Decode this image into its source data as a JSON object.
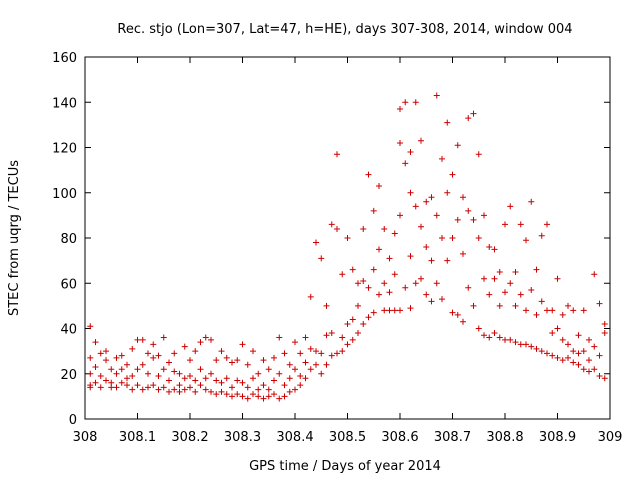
{
  "chart_data": {
    "type": "scatter",
    "title": "Rec. stjo (Lon=307, Lat=47, h=HE), days 307-308, 2014, window 004",
    "xlabel": "GPS time / Days of year 2014",
    "ylabel": "STEC from uqrg / TECUs",
    "xlim": [
      308,
      309
    ],
    "ylim": [
      0,
      160
    ],
    "xticks": [
      "308",
      "308.1",
      "308.2",
      "308.3",
      "308.4",
      "308.5",
      "308.6",
      "308.7",
      "308.8",
      "308.9",
      "309"
    ],
    "yticks": [
      "0",
      "20",
      "40",
      "60",
      "80",
      "100",
      "120",
      "140",
      "160"
    ],
    "grid": false,
    "marker": "plus",
    "color": "#cc0000",
    "series": [
      {
        "points": [
          [
            308.01,
            41
          ],
          [
            308.01,
            27
          ],
          [
            308.01,
            20
          ],
          [
            308.01,
            15
          ],
          [
            308.01,
            14
          ],
          [
            308.02,
            34
          ],
          [
            308.02,
            23
          ],
          [
            308.02,
            16
          ],
          [
            308.03,
            29
          ],
          [
            308.03,
            19
          ],
          [
            308.03,
            14
          ],
          [
            308.04,
            30
          ],
          [
            308.04,
            26
          ],
          [
            308.04,
            17
          ],
          [
            308.05,
            22
          ],
          [
            308.05,
            16
          ],
          [
            308.05,
            14
          ],
          [
            308.06,
            27
          ],
          [
            308.06,
            20
          ],
          [
            308.06,
            14
          ],
          [
            308.07,
            28
          ],
          [
            308.07,
            22
          ],
          [
            308.07,
            16
          ],
          [
            308.08,
            24
          ],
          [
            308.08,
            18
          ],
          [
            308.08,
            15
          ],
          [
            308.09,
            31
          ],
          [
            308.09,
            19
          ],
          [
            308.09,
            13
          ],
          [
            308.1,
            35
          ],
          [
            308.1,
            22
          ],
          [
            308.1,
            15
          ],
          [
            308.11,
            35
          ],
          [
            308.11,
            24
          ],
          [
            308.11,
            13
          ],
          [
            308.12,
            29
          ],
          [
            308.12,
            20
          ],
          [
            308.12,
            14
          ],
          [
            308.13,
            33
          ],
          [
            308.13,
            27
          ],
          [
            308.13,
            15
          ],
          [
            308.14,
            28
          ],
          [
            308.14,
            19
          ],
          [
            308.14,
            13
          ],
          [
            308.15,
            36
          ],
          [
            308.15,
            22
          ],
          [
            308.15,
            14
          ],
          [
            308.16,
            25
          ],
          [
            308.16,
            17
          ],
          [
            308.16,
            12
          ],
          [
            308.17,
            29
          ],
          [
            308.17,
            21
          ],
          [
            308.17,
            13
          ],
          [
            308.18,
            20
          ],
          [
            308.18,
            15
          ],
          [
            308.18,
            12
          ],
          [
            308.19,
            32
          ],
          [
            308.19,
            18
          ],
          [
            308.19,
            13
          ],
          [
            308.2,
            26
          ],
          [
            308.2,
            19
          ],
          [
            308.2,
            14
          ],
          [
            308.21,
            30
          ],
          [
            308.21,
            17
          ],
          [
            308.21,
            12
          ],
          [
            308.22,
            34
          ],
          [
            308.22,
            22
          ],
          [
            308.22,
            15
          ],
          [
            308.23,
            36
          ],
          [
            308.23,
            18
          ],
          [
            308.23,
            13
          ],
          [
            308.24,
            35
          ],
          [
            308.24,
            20
          ],
          [
            308.24,
            12
          ],
          [
            308.25,
            26
          ],
          [
            308.25,
            17
          ],
          [
            308.25,
            11
          ],
          [
            308.26,
            30
          ],
          [
            308.26,
            16
          ],
          [
            308.26,
            12
          ],
          [
            308.27,
            27
          ],
          [
            308.27,
            18
          ],
          [
            308.27,
            11
          ],
          [
            308.28,
            25
          ],
          [
            308.28,
            14
          ],
          [
            308.28,
            10
          ],
          [
            308.29,
            26
          ],
          [
            308.29,
            17
          ],
          [
            308.29,
            11
          ],
          [
            308.3,
            33
          ],
          [
            308.3,
            16
          ],
          [
            308.3,
            10
          ],
          [
            308.31,
            24
          ],
          [
            308.31,
            14
          ],
          [
            308.31,
            9
          ],
          [
            308.32,
            30
          ],
          [
            308.32,
            18
          ],
          [
            308.32,
            11
          ],
          [
            308.33,
            20
          ],
          [
            308.33,
            13
          ],
          [
            308.33,
            10
          ],
          [
            308.34,
            26
          ],
          [
            308.34,
            15
          ],
          [
            308.34,
            9
          ],
          [
            308.35,
            22
          ],
          [
            308.35,
            13
          ],
          [
            308.35,
            10
          ],
          [
            308.36,
            27
          ],
          [
            308.36,
            17
          ],
          [
            308.36,
            11
          ],
          [
            308.37,
            36
          ],
          [
            308.37,
            20
          ],
          [
            308.37,
            9
          ],
          [
            308.38,
            29
          ],
          [
            308.38,
            15
          ],
          [
            308.38,
            10
          ],
          [
            308.39,
            24
          ],
          [
            308.39,
            18
          ],
          [
            308.39,
            12
          ],
          [
            308.4,
            34
          ],
          [
            308.4,
            22
          ],
          [
            308.4,
            13
          ],
          [
            308.41,
            29
          ],
          [
            308.41,
            19
          ],
          [
            308.41,
            15
          ],
          [
            308.42,
            36
          ],
          [
            308.42,
            25
          ],
          [
            308.42,
            18
          ],
          [
            308.43,
            54
          ],
          [
            308.43,
            31
          ],
          [
            308.43,
            22
          ],
          [
            308.44,
            78
          ],
          [
            308.44,
            30
          ],
          [
            308.44,
            24
          ],
          [
            308.45,
            71
          ],
          [
            308.45,
            29
          ],
          [
            308.45,
            20
          ],
          [
            308.46,
            50
          ],
          [
            308.46,
            37
          ],
          [
            308.46,
            24
          ],
          [
            308.47,
            86
          ],
          [
            308.47,
            38
          ],
          [
            308.47,
            28
          ],
          [
            308.48,
            117
          ],
          [
            308.48,
            84
          ],
          [
            308.48,
            29
          ],
          [
            308.49,
            64
          ],
          [
            308.49,
            36
          ],
          [
            308.49,
            30
          ],
          [
            308.5,
            80
          ],
          [
            308.5,
            42
          ],
          [
            308.5,
            33
          ],
          [
            308.51,
            66
          ],
          [
            308.51,
            44
          ],
          [
            308.51,
            35
          ],
          [
            308.52,
            60
          ],
          [
            308.52,
            50
          ],
          [
            308.52,
            38
          ],
          [
            308.53,
            84
          ],
          [
            308.53,
            61
          ],
          [
            308.53,
            42
          ],
          [
            308.54,
            108
          ],
          [
            308.54,
            58
          ],
          [
            308.54,
            45
          ],
          [
            308.55,
            92
          ],
          [
            308.55,
            66
          ],
          [
            308.55,
            47
          ],
          [
            308.56,
            103
          ],
          [
            308.56,
            75
          ],
          [
            308.56,
            55
          ],
          [
            308.57,
            84
          ],
          [
            308.57,
            60
          ],
          [
            308.57,
            48
          ],
          [
            308.58,
            71
          ],
          [
            308.58,
            56
          ],
          [
            308.58,
            48
          ],
          [
            308.59,
            82
          ],
          [
            308.59,
            64
          ],
          [
            308.59,
            48
          ],
          [
            308.6,
            137
          ],
          [
            308.6,
            122
          ],
          [
            308.6,
            90
          ],
          [
            308.6,
            48
          ],
          [
            308.61,
            140
          ],
          [
            308.61,
            113
          ],
          [
            308.61,
            58
          ],
          [
            308.62,
            118
          ],
          [
            308.62,
            100
          ],
          [
            308.62,
            72
          ],
          [
            308.62,
            49
          ],
          [
            308.63,
            140
          ],
          [
            308.63,
            94
          ],
          [
            308.63,
            60
          ],
          [
            308.64,
            123
          ],
          [
            308.64,
            85
          ],
          [
            308.64,
            62
          ],
          [
            308.65,
            96
          ],
          [
            308.65,
            76
          ],
          [
            308.65,
            55
          ],
          [
            308.66,
            98
          ],
          [
            308.66,
            70
          ],
          [
            308.66,
            52
          ],
          [
            308.67,
            143
          ],
          [
            308.67,
            90
          ],
          [
            308.67,
            60
          ],
          [
            308.68,
            115
          ],
          [
            308.68,
            80
          ],
          [
            308.68,
            53
          ],
          [
            308.69,
            131
          ],
          [
            308.69,
            100
          ],
          [
            308.69,
            70
          ],
          [
            308.7,
            108
          ],
          [
            308.7,
            80
          ],
          [
            308.7,
            47
          ],
          [
            308.71,
            121
          ],
          [
            308.71,
            88
          ],
          [
            308.71,
            46
          ],
          [
            308.72,
            98
          ],
          [
            308.72,
            73
          ],
          [
            308.72,
            43
          ],
          [
            308.73,
            133
          ],
          [
            308.73,
            92
          ],
          [
            308.73,
            58
          ],
          [
            308.74,
            135
          ],
          [
            308.74,
            88
          ],
          [
            308.74,
            50
          ],
          [
            308.75,
            117
          ],
          [
            308.75,
            80
          ],
          [
            308.75,
            40
          ],
          [
            308.76,
            90
          ],
          [
            308.76,
            62
          ],
          [
            308.76,
            37
          ],
          [
            308.77,
            76
          ],
          [
            308.77,
            55
          ],
          [
            308.77,
            36
          ],
          [
            308.78,
            75
          ],
          [
            308.78,
            62
          ],
          [
            308.78,
            38
          ],
          [
            308.79,
            65
          ],
          [
            308.79,
            50
          ],
          [
            308.79,
            36
          ],
          [
            308.8,
            86
          ],
          [
            308.8,
            56
          ],
          [
            308.8,
            35
          ],
          [
            308.81,
            94
          ],
          [
            308.81,
            60
          ],
          [
            308.81,
            35
          ],
          [
            308.82,
            65
          ],
          [
            308.82,
            50
          ],
          [
            308.82,
            34
          ],
          [
            308.83,
            86
          ],
          [
            308.83,
            55
          ],
          [
            308.83,
            33
          ],
          [
            308.84,
            79
          ],
          [
            308.84,
            48
          ],
          [
            308.84,
            33
          ],
          [
            308.85,
            96
          ],
          [
            308.85,
            57
          ],
          [
            308.85,
            32
          ],
          [
            308.86,
            66
          ],
          [
            308.86,
            46
          ],
          [
            308.86,
            31
          ],
          [
            308.87,
            81
          ],
          [
            308.87,
            52
          ],
          [
            308.87,
            30
          ],
          [
            308.88,
            86
          ],
          [
            308.88,
            48
          ],
          [
            308.88,
            29
          ],
          [
            308.89,
            48
          ],
          [
            308.89,
            38
          ],
          [
            308.89,
            28
          ],
          [
            308.9,
            62
          ],
          [
            308.9,
            40
          ],
          [
            308.9,
            27
          ],
          [
            308.91,
            46
          ],
          [
            308.91,
            35
          ],
          [
            308.91,
            26
          ],
          [
            308.92,
            50
          ],
          [
            308.92,
            33
          ],
          [
            308.92,
            27
          ],
          [
            308.93,
            48
          ],
          [
            308.93,
            30
          ],
          [
            308.93,
            25
          ],
          [
            308.94,
            37
          ],
          [
            308.94,
            29
          ],
          [
            308.94,
            24
          ],
          [
            308.95,
            48
          ],
          [
            308.95,
            30
          ],
          [
            308.95,
            22
          ],
          [
            308.96,
            35
          ],
          [
            308.96,
            26
          ],
          [
            308.96,
            21
          ],
          [
            308.97,
            64
          ],
          [
            308.97,
            32
          ],
          [
            308.97,
            22
          ],
          [
            308.98,
            51
          ],
          [
            308.98,
            28
          ],
          [
            308.98,
            19
          ],
          [
            308.99,
            42
          ],
          [
            308.99,
            38
          ],
          [
            308.99,
            18
          ]
        ]
      }
    ]
  }
}
